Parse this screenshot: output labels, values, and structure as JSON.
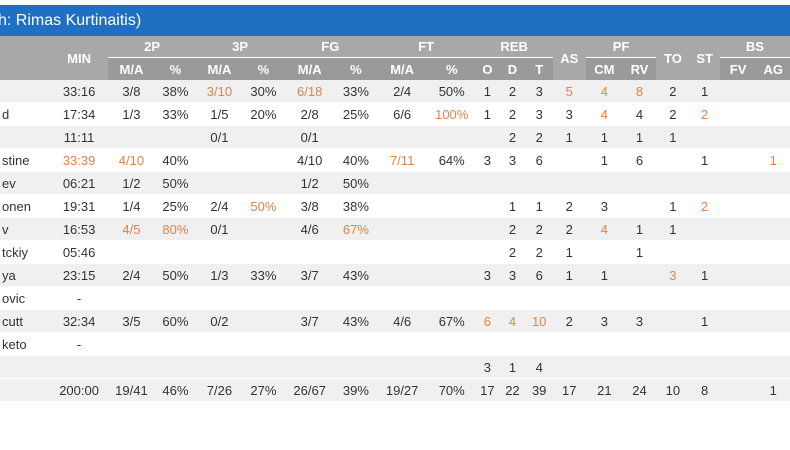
{
  "title": "h: Rimas Kurtinaitis)",
  "header": {
    "min": "MIN",
    "groups": {
      "p2": "2P",
      "p3": "3P",
      "fg": "FG",
      "ft": "FT",
      "reb": "REB",
      "pf": "PF",
      "bs": "BS"
    },
    "as": "AS",
    "to": "TO",
    "st": "ST",
    "sub": {
      "ma": "M/A",
      "pct": "%",
      "o": "O",
      "d": "D",
      "t": "T",
      "cm": "CM",
      "rv": "RV",
      "fv": "FV",
      "ag": "AG"
    }
  },
  "columns": [
    "name",
    "min",
    "p2ma",
    "p2p",
    "p3ma",
    "p3p",
    "fgma",
    "fgp",
    "ftma",
    "ftp",
    "o",
    "d",
    "t",
    "as",
    "cm",
    "rv",
    "to",
    "st",
    "fv",
    "ag"
  ],
  "highlight_color": "#e0834a",
  "rows": [
    {
      "cells": [
        "",
        "33:16",
        "3/8",
        "38%",
        "3/10",
        "30%",
        "6/18",
        "33%",
        "2/4",
        "50%",
        "1",
        "2",
        "3",
        "5",
        "4",
        "8",
        "2",
        "1",
        "",
        ""
      ],
      "hl": [
        4,
        6,
        13,
        14,
        15
      ]
    },
    {
      "cells": [
        "d",
        "17:34",
        "1/3",
        "33%",
        "1/5",
        "20%",
        "2/8",
        "25%",
        "6/6",
        "100%",
        "1",
        "2",
        "3",
        "3",
        "4",
        "4",
        "2",
        "2",
        "",
        ""
      ],
      "hl": [
        9,
        14,
        17
      ]
    },
    {
      "cells": [
        "",
        "11:11",
        "",
        "",
        "0/1",
        "",
        "0/1",
        "",
        "",
        "",
        "",
        "2",
        "2",
        "1",
        "1",
        "1",
        "1",
        "",
        "",
        ""
      ],
      "hl": []
    },
    {
      "cells": [
        "stine",
        "33:39",
        "4/10",
        "40%",
        "",
        "",
        "4/10",
        "40%",
        "7/11",
        "64%",
        "3",
        "3",
        "6",
        "",
        "1",
        "6",
        "",
        "1",
        "",
        "1"
      ],
      "hl": [
        1,
        2,
        8,
        19
      ]
    },
    {
      "cells": [
        "ev",
        "06:21",
        "1/2",
        "50%",
        "",
        "",
        "1/2",
        "50%",
        "",
        "",
        "",
        "",
        "",
        "",
        "",
        "",
        "",
        "",
        "",
        ""
      ],
      "hl": []
    },
    {
      "cells": [
        "onen",
        "19:31",
        "1/4",
        "25%",
        "2/4",
        "50%",
        "3/8",
        "38%",
        "",
        "",
        "",
        "1",
        "1",
        "2",
        "3",
        "",
        "1",
        "2",
        "",
        ""
      ],
      "hl": [
        5,
        17
      ]
    },
    {
      "cells": [
        "v",
        "16:53",
        "4/5",
        "80%",
        "0/1",
        "",
        "4/6",
        "67%",
        "",
        "",
        "",
        "2",
        "2",
        "2",
        "4",
        "1",
        "1",
        "",
        "",
        ""
      ],
      "hl": [
        2,
        3,
        7,
        14
      ]
    },
    {
      "cells": [
        "tckiy",
        "05:46",
        "",
        "",
        "",
        "",
        "",
        "",
        "",
        "",
        "",
        "2",
        "2",
        "1",
        "",
        "1",
        "",
        "",
        "",
        ""
      ],
      "hl": []
    },
    {
      "cells": [
        "ya",
        "23:15",
        "2/4",
        "50%",
        "1/3",
        "33%",
        "3/7",
        "43%",
        "",
        "",
        "3",
        "3",
        "6",
        "1",
        "1",
        "",
        "3",
        "1",
        "",
        ""
      ],
      "hl": [
        16
      ]
    },
    {
      "cells": [
        "ovic",
        "-",
        "",
        "",
        "",
        "",
        "",
        "",
        "",
        "",
        "",
        "",
        "",
        "",
        "",
        "",
        "",
        "",
        "",
        ""
      ],
      "hl": []
    },
    {
      "cells": [
        "cutt",
        "32:34",
        "3/5",
        "60%",
        "0/2",
        "",
        "3/7",
        "43%",
        "4/6",
        "67%",
        "6",
        "4",
        "10",
        "2",
        "3",
        "3",
        "",
        "1",
        "",
        ""
      ],
      "hl": [
        10,
        11,
        12
      ]
    },
    {
      "cells": [
        "keto",
        "-",
        "",
        "",
        "",
        "",
        "",
        "",
        "",
        "",
        "",
        "",
        "",
        "",
        "",
        "",
        "",
        "",
        "",
        ""
      ],
      "hl": []
    },
    {
      "cells": [
        "",
        "",
        "",
        "",
        "",
        "",
        "",
        "",
        "",
        "",
        "3",
        "1",
        "4",
        "",
        "",
        "",
        "",
        "",
        "",
        ""
      ],
      "hl": []
    },
    {
      "cells": [
        "",
        "200:00",
        "19/41",
        "46%",
        "7/26",
        "27%",
        "26/67",
        "39%",
        "19/27",
        "70%",
        "17",
        "22",
        "39",
        "17",
        "21",
        "24",
        "10",
        "8",
        "",
        "1"
      ],
      "hl": []
    }
  ]
}
